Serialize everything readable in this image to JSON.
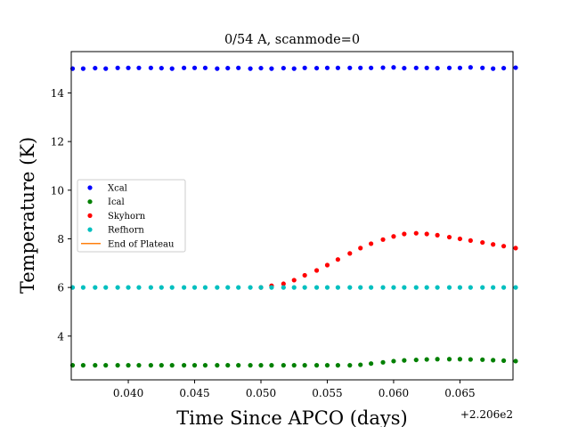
{
  "chart_data": {
    "type": "scatter",
    "title": "0/54 A, scanmode=0",
    "xlabel": "Time Since APCO (days)",
    "ylabel": "Temperature (K)",
    "x_offset_label": "+2.206e2",
    "xlim": [
      0.0357,
      0.069
    ],
    "ylim": [
      2.2,
      15.7
    ],
    "x_ticks": [
      0.04,
      0.045,
      0.05,
      0.055,
      0.06,
      0.065
    ],
    "x_tick_labels": [
      "0.040",
      "0.045",
      "0.050",
      "0.055",
      "0.060",
      "0.065"
    ],
    "y_ticks": [
      4,
      6,
      8,
      10,
      12,
      14
    ],
    "y_tick_labels": [
      "4",
      "6",
      "8",
      "10",
      "12",
      "14"
    ],
    "grid": false,
    "legend_position": "center-left",
    "x": [
      0.0358,
      0.0366,
      0.0375,
      0.0383,
      0.0392,
      0.04,
      0.0408,
      0.0417,
      0.0425,
      0.0433,
      0.0442,
      0.045,
      0.0458,
      0.0467,
      0.0475,
      0.0483,
      0.0492,
      0.05,
      0.0508,
      0.0517,
      0.0525,
      0.0533,
      0.0542,
      0.055,
      0.0558,
      0.0567,
      0.0575,
      0.0583,
      0.0592,
      0.06,
      0.0608,
      0.0617,
      0.0625,
      0.0633,
      0.0642,
      0.065,
      0.0658,
      0.0667,
      0.0675,
      0.0683,
      0.0692
    ],
    "series": [
      {
        "name": "Xcal",
        "color": "#0000ff",
        "values": [
          15.0,
          15.0,
          15.02,
          15.0,
          15.03,
          15.03,
          15.03,
          15.03,
          15.02,
          15.0,
          15.03,
          15.03,
          15.03,
          15.0,
          15.02,
          15.03,
          15.0,
          15.02,
          15.0,
          15.02,
          15.0,
          15.03,
          15.02,
          15.03,
          15.03,
          15.03,
          15.03,
          15.03,
          15.04,
          15.05,
          15.02,
          15.03,
          15.03,
          15.02,
          15.03,
          15.03,
          15.05,
          15.03,
          15.0,
          15.02,
          15.04
        ]
      },
      {
        "name": "Ical",
        "color": "#008000",
        "values": [
          2.8,
          2.8,
          2.8,
          2.8,
          2.8,
          2.8,
          2.8,
          2.8,
          2.8,
          2.8,
          2.8,
          2.8,
          2.8,
          2.8,
          2.8,
          2.8,
          2.8,
          2.8,
          2.8,
          2.8,
          2.8,
          2.8,
          2.8,
          2.8,
          2.8,
          2.8,
          2.82,
          2.87,
          2.92,
          2.97,
          3.0,
          3.02,
          3.04,
          3.05,
          3.05,
          3.05,
          3.04,
          3.03,
          3.01,
          2.99,
          2.97
        ]
      },
      {
        "name": "Skyhorn",
        "color": "#ff0000",
        "values": [
          null,
          null,
          null,
          null,
          null,
          null,
          null,
          null,
          null,
          null,
          null,
          null,
          null,
          null,
          null,
          null,
          null,
          6.0,
          6.07,
          6.15,
          6.3,
          6.5,
          6.7,
          6.92,
          7.15,
          7.4,
          7.62,
          7.8,
          7.97,
          8.1,
          8.2,
          8.23,
          8.2,
          8.15,
          8.07,
          8.0,
          7.93,
          7.85,
          7.77,
          7.7,
          7.62
        ]
      },
      {
        "name": "Refhorn",
        "color": "#00bfbf",
        "values": [
          6.0,
          6.0,
          6.0,
          6.0,
          6.0,
          6.0,
          6.0,
          6.0,
          6.0,
          6.0,
          6.0,
          6.0,
          6.0,
          6.0,
          6.0,
          6.0,
          6.0,
          6.0,
          6.0,
          6.0,
          6.0,
          6.0,
          6.0,
          6.0,
          6.0,
          6.0,
          6.0,
          6.0,
          6.0,
          6.0,
          6.0,
          6.0,
          6.0,
          6.0,
          6.0,
          6.0,
          6.0,
          6.0,
          6.0,
          6.0,
          6.0
        ]
      }
    ],
    "legend": [
      {
        "label": "Xcal",
        "color": "#0000ff",
        "marker": "dot"
      },
      {
        "label": "Ical",
        "color": "#008000",
        "marker": "dot"
      },
      {
        "label": "Skyhorn",
        "color": "#ff0000",
        "marker": "dot"
      },
      {
        "label": "Refhorn",
        "color": "#00bfbf",
        "marker": "dot"
      },
      {
        "label": "End of Plateau",
        "color": "#ff7f0e",
        "marker": "line"
      }
    ]
  }
}
